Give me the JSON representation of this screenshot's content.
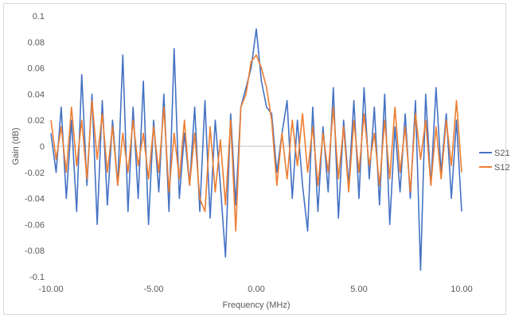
{
  "chart_data": {
    "type": "line",
    "title": "",
    "xlabel": "Frequency (MHz)",
    "ylabel": "Gain (dB)",
    "xlim": [
      -10,
      10
    ],
    "ylim": [
      -0.1,
      0.1
    ],
    "x_ticks": [
      -10,
      -5,
      0,
      5,
      10
    ],
    "x_tick_labels": [
      "-10.00",
      "-5.00",
      "0.00",
      "5.00",
      "10.00"
    ],
    "y_ticks": [
      -0.1,
      -0.08,
      -0.06,
      -0.04,
      -0.02,
      0,
      0.02,
      0.04,
      0.06,
      0.08,
      0.1
    ],
    "y_tick_labels": [
      "-0.1",
      "-0.08",
      "-0.06",
      "-0.04",
      "-0.02",
      "0",
      "0.02",
      "0.04",
      "0.06",
      "0.08",
      "0.1"
    ],
    "grid": false,
    "legend_position": "right",
    "series": [
      {
        "name": "S21",
        "color": "#4472c4",
        "x": [
          -10.0,
          -9.75,
          -9.5,
          -9.25,
          -9.0,
          -8.75,
          -8.5,
          -8.25,
          -8.0,
          -7.75,
          -7.5,
          -7.25,
          -7.0,
          -6.75,
          -6.5,
          -6.25,
          -6.0,
          -5.75,
          -5.5,
          -5.25,
          -5.0,
          -4.75,
          -4.5,
          -4.25,
          -4.0,
          -3.75,
          -3.5,
          -3.25,
          -3.0,
          -2.75,
          -2.5,
          -2.25,
          -2.0,
          -1.75,
          -1.5,
          -1.25,
          -1.0,
          -0.75,
          -0.5,
          -0.25,
          0.0,
          0.25,
          0.5,
          0.75,
          1.0,
          1.25,
          1.5,
          1.75,
          2.0,
          2.25,
          2.5,
          2.75,
          3.0,
          3.25,
          3.5,
          3.75,
          4.0,
          4.25,
          4.5,
          4.75,
          5.0,
          5.25,
          5.5,
          5.75,
          6.0,
          6.25,
          6.5,
          6.75,
          7.0,
          7.25,
          7.5,
          7.75,
          8.0,
          8.25,
          8.5,
          8.75,
          9.0,
          9.25,
          9.5,
          9.75,
          10.0
        ],
        "y": [
          0.01,
          -0.02,
          0.03,
          -0.04,
          0.02,
          -0.05,
          0.055,
          -0.03,
          0.04,
          -0.06,
          0.035,
          -0.045,
          0.02,
          -0.03,
          0.07,
          -0.05,
          0.03,
          -0.04,
          0.05,
          -0.06,
          0.02,
          -0.035,
          0.04,
          -0.05,
          0.075,
          -0.04,
          0.01,
          -0.03,
          0.03,
          -0.05,
          0.035,
          -0.055,
          0.02,
          -0.03,
          -0.085,
          0.025,
          -0.045,
          0.03,
          0.045,
          0.06,
          0.09,
          0.05,
          0.03,
          0.025,
          -0.02,
          0.01,
          0.035,
          -0.04,
          0.02,
          -0.03,
          -0.065,
          0.03,
          -0.05,
          0.015,
          -0.035,
          0.045,
          -0.055,
          0.02,
          -0.03,
          0.035,
          -0.04,
          0.045,
          -0.025,
          0.03,
          -0.045,
          0.04,
          -0.06,
          0.015,
          -0.035,
          0.025,
          -0.04,
          0.035,
          -0.095,
          0.04,
          -0.03,
          0.045,
          -0.02,
          0.025,
          -0.04,
          0.02,
          -0.05
        ]
      },
      {
        "name": "S12",
        "color": "#ed7d31",
        "x": [
          -10.0,
          -9.75,
          -9.5,
          -9.25,
          -9.0,
          -8.75,
          -8.5,
          -8.25,
          -8.0,
          -7.75,
          -7.5,
          -7.25,
          -7.0,
          -6.75,
          -6.5,
          -6.25,
          -6.0,
          -5.75,
          -5.5,
          -5.25,
          -5.0,
          -4.75,
          -4.5,
          -4.25,
          -4.0,
          -3.75,
          -3.5,
          -3.25,
          -3.0,
          -2.75,
          -2.5,
          -2.25,
          -2.0,
          -1.75,
          -1.5,
          -1.25,
          -1.0,
          -0.75,
          -0.5,
          -0.25,
          0.0,
          0.25,
          0.5,
          0.75,
          1.0,
          1.25,
          1.5,
          1.75,
          2.0,
          2.25,
          2.5,
          2.75,
          3.0,
          3.25,
          3.5,
          3.75,
          4.0,
          4.25,
          4.5,
          4.75,
          5.0,
          5.25,
          5.5,
          5.75,
          6.0,
          6.25,
          6.5,
          6.75,
          7.0,
          7.25,
          7.5,
          7.75,
          8.0,
          8.25,
          8.5,
          8.75,
          9.0,
          9.25,
          9.5,
          9.75,
          10.0
        ],
        "y": [
          0.02,
          -0.01,
          0.015,
          -0.02,
          0.03,
          -0.015,
          0.02,
          -0.025,
          0.035,
          -0.01,
          0.025,
          -0.02,
          0.015,
          -0.03,
          0.01,
          -0.02,
          0.02,
          -0.015,
          0.01,
          -0.025,
          0.015,
          -0.02,
          0.03,
          -0.035,
          0.01,
          -0.025,
          0.02,
          -0.03,
          0.01,
          -0.04,
          -0.05,
          0.015,
          -0.035,
          0.005,
          -0.045,
          0.02,
          -0.065,
          0.03,
          0.04,
          0.065,
          0.07,
          0.06,
          0.045,
          0.02,
          -0.03,
          0.01,
          -0.025,
          0.02,
          -0.015,
          0.025,
          -0.02,
          0.015,
          -0.03,
          0.01,
          -0.02,
          0.03,
          -0.025,
          0.015,
          -0.035,
          0.02,
          -0.02,
          0.025,
          -0.015,
          0.01,
          -0.03,
          0.02,
          -0.025,
          0.03,
          -0.02,
          0.015,
          -0.035,
          0.025,
          -0.01,
          0.02,
          -0.03,
          0.015,
          -0.025,
          0.02,
          -0.015,
          0.035,
          -0.02
        ]
      }
    ]
  }
}
